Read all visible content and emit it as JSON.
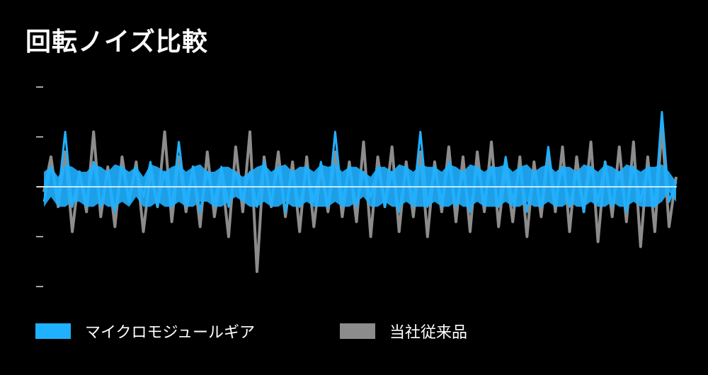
{
  "chart_data": {
    "type": "line",
    "title": "回転ノイズ比較",
    "xlabel": "",
    "ylabel": "",
    "ylim": [
      -2,
      2
    ],
    "yticks": [
      -2,
      -1,
      0,
      1,
      2
    ],
    "ytick_labels_shown": false,
    "grid": false,
    "zero_line": true,
    "legend_position": "bottom",
    "series": [
      {
        "name": "当社従来品",
        "color": "#8c8c8c",
        "values": [
          -0.1,
          0.6,
          -0.4,
          0.7,
          -0.9,
          0.3,
          -0.5,
          1.1,
          -0.6,
          0.4,
          -0.8,
          0.6,
          -0.3,
          0.5,
          -0.9,
          0.3,
          -0.4,
          1.1,
          -0.7,
          0.6,
          -0.5,
          0.4,
          -0.8,
          0.7,
          -0.6,
          0.3,
          -1.0,
          0.8,
          -0.5,
          1.1,
          -1.7,
          0.6,
          -0.4,
          0.7,
          -0.6,
          0.5,
          -0.9,
          0.6,
          -0.8,
          0.4,
          -0.5,
          0.7,
          -0.6,
          0.5,
          -0.7,
          0.9,
          -1.0,
          0.6,
          -0.4,
          0.8,
          -0.9,
          0.5,
          -0.6,
          0.7,
          -1.0,
          0.5,
          -0.5,
          0.8,
          -0.7,
          0.6,
          -0.9,
          0.7,
          -0.5,
          0.9,
          -0.8,
          0.4,
          -0.7,
          0.6,
          -1.0,
          0.5,
          -0.6,
          0.7,
          -0.5,
          0.8,
          -0.9,
          0.6,
          -0.5,
          0.9,
          -1.1,
          0.5,
          -0.6,
          0.8,
          -0.7,
          0.9,
          -1.2,
          0.6,
          -0.9,
          1.2,
          -0.8,
          0.2
        ]
      },
      {
        "name": "マイクロモジュールギア",
        "color": "#1fb0ff",
        "values": [
          -0.3,
          0.4,
          -0.2,
          1.1,
          -0.4,
          0.3,
          -0.3,
          0.5,
          -0.4,
          0.3,
          -0.5,
          0.4,
          -0.3,
          0.4,
          -0.2,
          0.5,
          -0.4,
          0.3,
          -0.4,
          0.9,
          -0.3,
          0.4,
          -0.5,
          0.3,
          -0.3,
          0.4,
          -0.4,
          0.3,
          -0.2,
          0.3,
          -0.4,
          0.5,
          -0.3,
          0.4,
          -0.5,
          0.3,
          -0.4,
          0.4,
          -0.3,
          0.5,
          -0.4,
          1.1,
          -0.3,
          0.4,
          -0.4,
          0.3,
          -0.2,
          0.4,
          -0.4,
          0.3,
          -0.5,
          0.4,
          -0.3,
          1.1,
          -0.4,
          0.4,
          -0.3,
          0.5,
          -0.4,
          0.3,
          -0.5,
          0.4,
          -0.3,
          0.4,
          -0.4,
          0.6,
          -0.3,
          0.4,
          -0.5,
          0.3,
          -0.4,
          0.8,
          -0.3,
          0.4,
          -0.4,
          0.3,
          -0.5,
          0.4,
          -0.3,
          0.5,
          -0.4,
          0.3,
          -0.5,
          0.4,
          -0.3,
          0.4,
          -0.4,
          1.5,
          -0.3,
          0.1
        ]
      }
    ],
    "legend": [
      "マイクロモジュールギア",
      "当社従来品"
    ]
  }
}
